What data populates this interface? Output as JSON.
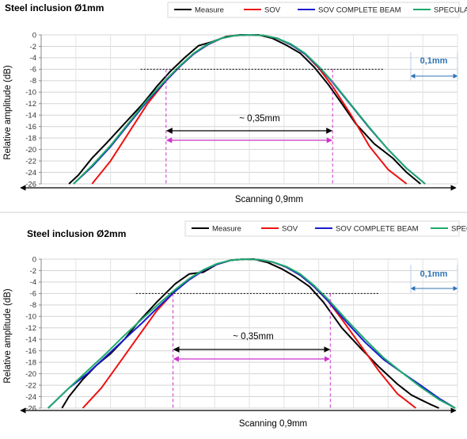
{
  "legend": {
    "items": [
      {
        "label": "Measure",
        "color": "#000000"
      },
      {
        "label": "SOV",
        "color": "#ee1111"
      },
      {
        "label": "SOV COMPLETE BEAM",
        "color": "#1a1ad0"
      },
      {
        "label": "SPECULAR",
        "color": "#1faa6b"
      }
    ]
  },
  "annotations": {
    "width_label": "~ 0,35mm",
    "scan_label": "Scanning 0,9mm",
    "ruler_label": "0,1mm"
  },
  "chart_data": [
    {
      "type": "line",
      "title": "Steel inclusion Ø1mm",
      "ylabel": "Relative amplitude (dB)",
      "xlabel": "Scanning 0,9mm",
      "x_unit": "mm",
      "xlim": [
        -0.45,
        0.45
      ],
      "ylim": [
        -26,
        0
      ],
      "yticks": [
        0,
        -2,
        -4,
        -6,
        -8,
        -10,
        -12,
        -14,
        -16,
        -18,
        -20,
        -22,
        -24,
        -26
      ],
      "grid": true,
      "legend_position": "top",
      "annotations": {
        "width_label": "~ 0,35mm",
        "ruler_label": "0,1mm",
        "level_db": -6
      },
      "series": [
        {
          "name": "Measure",
          "color": "#000000",
          "x": [
            -0.39,
            -0.37,
            -0.34,
            -0.31,
            -0.27,
            -0.23,
            -0.2,
            -0.17,
            -0.14,
            -0.11,
            -0.08,
            -0.05,
            -0.02,
            0,
            0.02,
            0.05,
            0.08,
            0.11,
            0.14,
            0.17,
            0.2,
            0.23,
            0.27,
            0.31,
            0.34,
            0.37
          ],
          "values": [
            -26,
            -24.5,
            -21.5,
            -19,
            -15.5,
            -12,
            -9,
            -6.3,
            -4,
            -1.9,
            -1.2,
            -0.3,
            0,
            0,
            0,
            -0.6,
            -1.8,
            -3.2,
            -5.6,
            -8.6,
            -12,
            -15.5,
            -19,
            -21.5,
            -24,
            -26
          ]
        },
        {
          "name": "SOV",
          "color": "#ee1111",
          "x": [
            -0.34,
            -0.3,
            -0.26,
            -0.22,
            -0.18,
            -0.15,
            -0.12,
            -0.09,
            -0.06,
            -0.03,
            0,
            0.03,
            0.06,
            0.09,
            0.12,
            0.15,
            0.18,
            0.22,
            0.26,
            0.3,
            0.34
          ],
          "values": [
            -26,
            -22,
            -17,
            -12,
            -8,
            -5.5,
            -3.3,
            -1.7,
            -0.6,
            -0.1,
            0,
            -0.1,
            -0.6,
            -1.7,
            -3.3,
            -5.8,
            -9,
            -14,
            -19.5,
            -23.5,
            -26
          ]
        },
        {
          "name": "SOV COMPLETE BEAM",
          "color": "#1a1ad0",
          "x": [
            -0.38,
            -0.34,
            -0.3,
            -0.26,
            -0.22,
            -0.18,
            -0.15,
            -0.12,
            -0.09,
            -0.06,
            -0.03,
            0,
            0.03,
            0.06,
            0.09,
            0.12,
            0.15,
            0.18,
            0.22,
            0.26,
            0.3,
            0.34,
            0.38
          ],
          "values": [
            -26,
            -23,
            -19.5,
            -15.5,
            -11.5,
            -8,
            -5.5,
            -3.3,
            -1.7,
            -0.6,
            -0.1,
            0,
            -0.1,
            -0.6,
            -1.7,
            -3.3,
            -5.6,
            -8.3,
            -12.3,
            -16.3,
            -20,
            -23.3,
            -26
          ]
        },
        {
          "name": "SPECULAR",
          "color": "#1faa6b",
          "x": [
            -0.38,
            -0.34,
            -0.3,
            -0.26,
            -0.22,
            -0.18,
            -0.15,
            -0.12,
            -0.09,
            -0.06,
            -0.03,
            0,
            0.03,
            0.06,
            0.09,
            0.12,
            0.15,
            0.18,
            0.22,
            0.26,
            0.3,
            0.34,
            0.38
          ],
          "values": [
            -26,
            -22.8,
            -19.3,
            -15.3,
            -11.3,
            -7.8,
            -5.4,
            -3.2,
            -1.6,
            -0.6,
            -0.1,
            0,
            -0.1,
            -0.6,
            -1.6,
            -3.2,
            -5.5,
            -8.2,
            -12.2,
            -16.2,
            -20,
            -23.3,
            -26
          ]
        }
      ]
    },
    {
      "type": "line",
      "title": "Steel inclusion Ø2mm",
      "ylabel": "Relative amplitude (dB)",
      "xlabel": "Scanning 0,9mm",
      "x_unit": "mm",
      "xlim": [
        -0.45,
        0.45
      ],
      "ylim": [
        -26,
        0
      ],
      "yticks": [
        0,
        -2,
        -4,
        -6,
        -8,
        -10,
        -12,
        -14,
        -16,
        -18,
        -20,
        -22,
        -24,
        -26
      ],
      "grid": true,
      "legend_position": "top",
      "annotations": {
        "width_label": "~ 0,35mm",
        "ruler_label": "0,1mm",
        "level_db": -6
      },
      "series": [
        {
          "name": "Measure",
          "color": "#000000",
          "x": [
            -0.405,
            -0.39,
            -0.36,
            -0.33,
            -0.3,
            -0.27,
            -0.24,
            -0.2,
            -0.16,
            -0.13,
            -0.1,
            -0.07,
            -0.04,
            -0.01,
            0.01,
            0.04,
            0.07,
            0.1,
            0.13,
            0.16,
            0.2,
            0.24,
            0.28,
            0.32,
            0.35,
            0.37,
            0.39,
            0.41
          ],
          "values": [
            -26,
            -24,
            -21,
            -18.5,
            -16.5,
            -14,
            -11,
            -7.5,
            -4.3,
            -2.6,
            -2.3,
            -0.9,
            -0.2,
            0,
            0,
            -0.6,
            -1.7,
            -3.1,
            -4.8,
            -7.5,
            -12,
            -15.5,
            -18.8,
            -21.8,
            -23.7,
            -24.5,
            -25.3,
            -26
          ]
        },
        {
          "name": "SOV",
          "color": "#ee1111",
          "x": [
            -0.36,
            -0.32,
            -0.28,
            -0.24,
            -0.2,
            -0.16,
            -0.13,
            -0.1,
            -0.07,
            -0.04,
            -0.01,
            0.02,
            0.05,
            0.08,
            0.11,
            0.14,
            0.17,
            0.2,
            0.24,
            0.28,
            0.32,
            0.36
          ],
          "values": [
            -26,
            -22.5,
            -18,
            -13.5,
            -9,
            -5.5,
            -3.6,
            -2,
            -0.9,
            -0.2,
            0,
            -0.1,
            -0.5,
            -1.4,
            -2.8,
            -4.8,
            -7.3,
            -10.5,
            -15,
            -19.5,
            -23.5,
            -26
          ]
        },
        {
          "name": "SOV COMPLETE BEAM",
          "color": "#1a1ad0",
          "x": [
            -0.435,
            -0.39,
            -0.35,
            -0.31,
            -0.27,
            -0.23,
            -0.2,
            -0.16,
            -0.13,
            -0.1,
            -0.07,
            -0.04,
            -0.01,
            0.02,
            0.05,
            0.08,
            0.11,
            0.14,
            0.17,
            0.21,
            0.25,
            0.29,
            0.33,
            0.37,
            0.41,
            0.445
          ],
          "values": [
            -26,
            -22.5,
            -20,
            -17,
            -14,
            -11,
            -8.6,
            -5.6,
            -3.6,
            -2,
            -0.9,
            -0.2,
            0,
            -0.1,
            -0.5,
            -1.4,
            -2.8,
            -4.8,
            -7.3,
            -11,
            -14.5,
            -17.5,
            -19.8,
            -22,
            -24.3,
            -26
          ]
        },
        {
          "name": "SPECULAR",
          "color": "#1faa6b",
          "x": [
            -0.435,
            -0.39,
            -0.35,
            -0.31,
            -0.27,
            -0.23,
            -0.2,
            -0.16,
            -0.13,
            -0.1,
            -0.07,
            -0.04,
            -0.01,
            0.02,
            0.05,
            0.08,
            0.11,
            0.14,
            0.17,
            0.21,
            0.25,
            0.29,
            0.33,
            0.37,
            0.41,
            0.445
          ],
          "values": [
            -26,
            -22.5,
            -19.5,
            -16.5,
            -13.3,
            -10.3,
            -8.1,
            -5.3,
            -3.4,
            -1.9,
            -0.8,
            -0.2,
            0,
            -0.1,
            -0.5,
            -1.3,
            -2.6,
            -4.6,
            -7,
            -10.6,
            -14,
            -17.2,
            -19.8,
            -22.3,
            -24.5,
            -26
          ]
        }
      ]
    }
  ]
}
